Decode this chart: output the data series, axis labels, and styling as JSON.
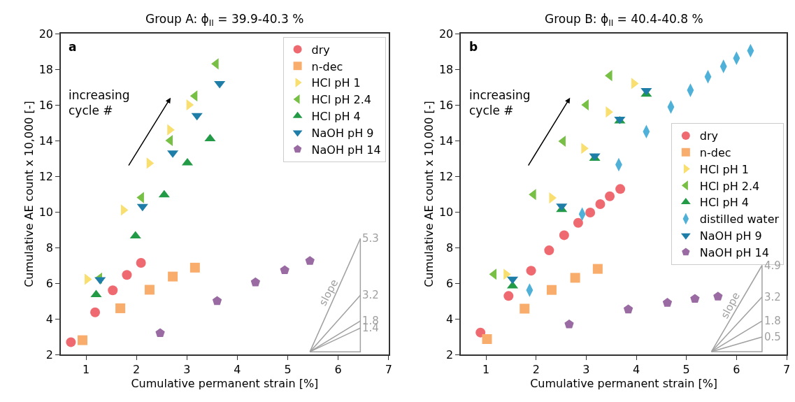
{
  "chart_data": [
    {
      "type": "scatter",
      "title": "Group A: ϕ$_{II}$ = 39.9-40.3 %",
      "xlabel": "Cumulative permanent strain [%]",
      "ylabel": "Cumulative AE count x 10,000 [-]",
      "xlim": [
        0.5,
        7
      ],
      "xticks": [
        1,
        2,
        3,
        4,
        5,
        6,
        7
      ],
      "ylim": [
        2,
        20
      ],
      "yticks": [
        2,
        4,
        6,
        8,
        10,
        12,
        14,
        16,
        18,
        20
      ],
      "legend": "top right",
      "series": [
        {
          "name": "dry",
          "color": "#ef6a70",
          "marker": "circle",
          "x": [
            0.7,
            1.18,
            1.53,
            1.81,
            2.09
          ],
          "values": [
            2.69,
            4.36,
            5.6,
            6.46,
            7.14
          ]
        },
        {
          "name": "n-dec",
          "color": "#f9ad6c",
          "marker": "square",
          "x": [
            0.93,
            1.68,
            2.26,
            2.72,
            3.16
          ],
          "values": [
            2.8,
            4.59,
            5.63,
            6.37,
            6.87
          ]
        },
        {
          "name": "HCl pH 1",
          "color": "#f9df70",
          "marker": "triangle-right",
          "x": [
            1.02,
            1.74,
            2.25,
            2.66,
            3.04
          ],
          "values": [
            6.22,
            10.1,
            12.73,
            14.6,
            16.0
          ]
        },
        {
          "name": "HCl pH 2.4",
          "color": "#77bf45",
          "marker": "triangle-left",
          "x": [
            1.27,
            2.1,
            2.67,
            3.16,
            3.58
          ],
          "values": [
            6.28,
            10.8,
            14.0,
            16.5,
            18.3
          ]
        },
        {
          "name": "HCl pH 4",
          "color": "#239a46",
          "marker": "triangle-up",
          "x": [
            1.2,
            1.98,
            2.55,
            3.01,
            3.46
          ],
          "values": [
            5.35,
            8.65,
            10.95,
            12.75,
            14.1
          ]
        },
        {
          "name": "NaOH pH 9",
          "color": "#1f7ea8",
          "marker": "triangle-down",
          "x": [
            1.28,
            2.12,
            2.72,
            3.2,
            3.65
          ],
          "values": [
            6.2,
            10.3,
            13.3,
            15.4,
            17.2
          ]
        },
        {
          "name": "NaOH pH 14",
          "color": "#9a6aa3",
          "x": [
            2.47,
            3.6,
            4.36,
            4.94,
            5.44
          ],
          "values": [
            3.2,
            5.0,
            6.05,
            6.73,
            7.25
          ]
        },
        {
          "type": "line",
          "color": "#a0a0a0",
          "x": [
            5.44,
            6.44,
            6.44
          ],
          "values": [
            2.15,
            2.15,
            8.5
          ]
        },
        {
          "type": "line",
          "color": "#a0a0a0",
          "x": [
            5.44,
            6.44
          ],
          "values": [
            2.15,
            8.5
          ]
        },
        {
          "type": "line",
          "color": "#a0a0a0",
          "x": [
            5.44,
            6.44
          ],
          "values": [
            2.15,
            5.32
          ]
        },
        {
          "type": "line",
          "color": "#a0a0a0",
          "x": [
            5.44,
            6.44
          ],
          "values": [
            2.15,
            3.88
          ]
        },
        {
          "type": "line",
          "color": "#a0a0a0",
          "x": [
            5.44,
            6.44
          ],
          "values": [
            2.15,
            3.48
          ]
        }
      ],
      "annotations": [
        "a",
        "increasing\ncycle #",
        "slope",
        "5.3",
        "3.2",
        "1.8",
        "1.4"
      ]
    },
    {
      "type": "scatter",
      "title": "Group B: ϕ$_{II}$ = 40.4-40.8 %",
      "xlabel": "Cumulative permanent strain [%]",
      "ylabel": "Cumulative AE count x 10,000 [-]",
      "xlim": [
        0.5,
        7
      ],
      "xticks": [
        1,
        2,
        3,
        4,
        5,
        6,
        7
      ],
      "ylim": [
        2,
        20
      ],
      "yticks": [
        2,
        4,
        6,
        8,
        10,
        12,
        14,
        16,
        18,
        20
      ],
      "legend": "right",
      "series": [
        {
          "name": "dry",
          "color": "#ef6a70",
          "marker": "circle",
          "x": [
            0.89,
            1.45,
            1.9,
            2.26,
            2.56,
            2.84,
            3.08,
            3.28,
            3.47,
            3.68
          ],
          "values": [
            3.23,
            5.28,
            6.7,
            7.84,
            8.69,
            9.38,
            9.96,
            10.43,
            10.87,
            11.28
          ]
        },
        {
          "name": "n-dec",
          "color": "#f9ad6c",
          "marker": "square",
          "x": [
            1.02,
            1.77,
            2.31,
            2.78,
            3.23
          ],
          "values": [
            2.86,
            4.57,
            5.62,
            6.3,
            6.8
          ]
        },
        {
          "name": "HCl pH 1",
          "color": "#f9df70",
          "marker": "triangle-right",
          "x": [
            1.4,
            2.31,
            2.95,
            3.44,
            3.95
          ],
          "values": [
            6.5,
            10.78,
            13.56,
            15.6,
            17.2
          ]
        },
        {
          "name": "HCl pH 2.4",
          "color": "#77bf45",
          "marker": "triangle-left",
          "x": [
            1.16,
            1.95,
            2.54,
            3.0,
            3.47
          ],
          "values": [
            6.5,
            10.97,
            13.96,
            16.0,
            17.64
          ]
        },
        {
          "name": "HCl pH 4",
          "color": "#239a46",
          "marker": "triangle-up",
          "x": [
            1.53,
            2.51,
            3.17,
            3.67,
            4.2
          ],
          "values": [
            5.84,
            10.13,
            13.0,
            15.1,
            16.6
          ]
        },
        {
          "name": "distilled water",
          "color": "#4fb1d8",
          "marker": "diamond",
          "x": [
            1.87,
            2.92,
            3.65,
            4.2,
            4.69,
            5.08,
            5.43,
            5.74,
            6.0,
            6.28
          ],
          "values": [
            5.61,
            9.87,
            12.65,
            14.5,
            15.88,
            16.82,
            17.58,
            18.16,
            18.62,
            19.04
          ]
        },
        {
          "name": "NaOH pH 9",
          "color": "#1f7ea8",
          "marker": "triangle-down",
          "x": [
            1.53,
            2.51,
            3.17,
            3.67,
            4.2
          ],
          "values": [
            6.23,
            10.32,
            13.14,
            15.2,
            16.8
          ]
        },
        {
          "name": "NaOH pH 14",
          "color": "#9a6aa3",
          "x": [
            2.66,
            3.84,
            4.62,
            5.17,
            5.63
          ],
          "values": [
            3.69,
            4.53,
            4.9,
            5.12,
            5.25
          ]
        },
        {
          "type": "line",
          "color": "#a0a0a0",
          "x": [
            5.5,
            6.51,
            6.51
          ],
          "values": [
            2.16,
            2.16,
            7.0
          ]
        },
        {
          "type": "line",
          "color": "#a0a0a0",
          "x": [
            5.5,
            6.51
          ],
          "values": [
            2.16,
            7.0
          ]
        },
        {
          "type": "line",
          "color": "#a0a0a0",
          "x": [
            5.5,
            6.51
          ],
          "values": [
            2.16,
            5.23
          ]
        },
        {
          "type": "line",
          "color": "#a0a0a0",
          "x": [
            5.5,
            6.51
          ],
          "values": [
            2.16,
            3.88
          ]
        },
        {
          "type": "line",
          "color": "#a0a0a0",
          "x": [
            5.5,
            6.51
          ],
          "values": [
            2.16,
            2.98
          ]
        }
      ],
      "annotations": [
        "b",
        "increasing\ncycle #",
        "slope",
        "4.9",
        "3.2",
        "1.8",
        "0.5"
      ]
    }
  ]
}
